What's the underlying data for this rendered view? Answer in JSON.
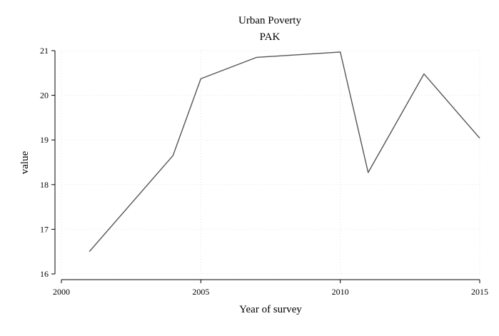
{
  "chart_data": {
    "type": "line",
    "title": "Urban Poverty",
    "subtitle": "PAK",
    "xlabel": "Year of survey",
    "ylabel": "value",
    "xlim": [
      2000,
      2015
    ],
    "ylim": [
      16,
      21
    ],
    "xticks": [
      2000,
      2005,
      2010,
      2015
    ],
    "yticks": [
      16,
      17,
      18,
      19,
      20,
      21
    ],
    "grid": true,
    "legend": "none",
    "line_color": "#555555",
    "grid_color": "#e3e3e3",
    "series": [
      {
        "x": [
          2001,
          2004,
          2005,
          2007,
          2010,
          2011,
          2013,
          2015
        ],
        "values": [
          16.5,
          18.65,
          20.37,
          20.85,
          20.97,
          18.27,
          20.48,
          19.04
        ]
      }
    ]
  }
}
